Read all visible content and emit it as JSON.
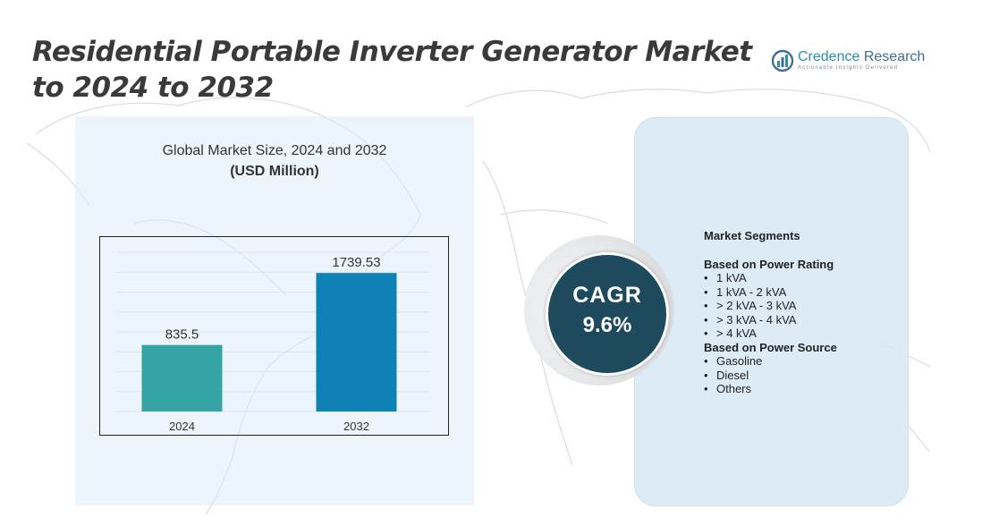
{
  "title": "Residential Portable Inverter Generator Market to 2024 to 2032",
  "logo": {
    "name_part1": "Credence",
    "name_part2": " Research",
    "tagline": "Actionable Insights Delivered"
  },
  "chart_heading": {
    "line1": "Global Market Size, 2024 and 2032",
    "line2": "(USD Million)"
  },
  "chart_data": {
    "type": "bar",
    "categories": [
      "2024",
      "2032"
    ],
    "values": [
      835.5,
      1739.53
    ],
    "value_labels": [
      "835.5",
      "1739.53"
    ],
    "title": "Global Market Size, 2024 and 2032",
    "ylabel": "(USD Million)",
    "ylim": [
      0,
      2000
    ],
    "grid": true,
    "colors": [
      "#33a3a3",
      "#0f81b4"
    ]
  },
  "cagr": {
    "label": "CAGR",
    "value": "9.6%"
  },
  "segments": {
    "heading": "Market Segments",
    "groups": [
      {
        "title": "Based on Power Rating",
        "items": [
          "1 kVA",
          "1 kVA - 2 kVA",
          "> 2 kVA - 3 kVA",
          "> 3 kVA - 4 kVA",
          "> 4 kVA"
        ]
      },
      {
        "title": "Based on Power Source",
        "items": [
          "Gasoline",
          "Diesel",
          "Others"
        ]
      }
    ]
  }
}
